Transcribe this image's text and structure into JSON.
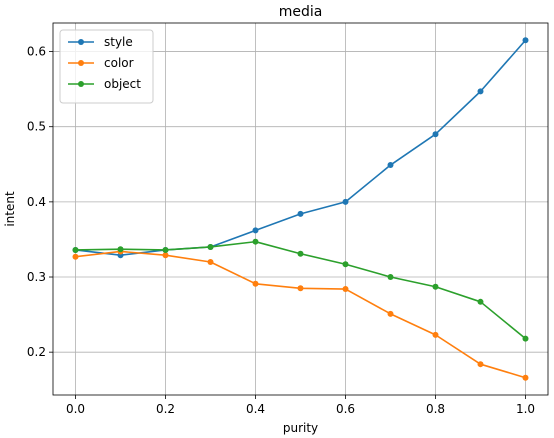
{
  "chart_data": {
    "type": "line",
    "title": "media",
    "xlabel": "purity",
    "ylabel": "intent",
    "x": [
      0.0,
      0.1,
      0.2,
      0.3,
      0.4,
      0.5,
      0.6,
      0.7,
      0.8,
      0.9,
      1.0
    ],
    "xlim": [
      -0.05,
      1.05
    ],
    "ylim": [
      0.143,
      0.638
    ],
    "xticks": [
      0.0,
      0.2,
      0.4,
      0.6,
      0.8,
      1.0
    ],
    "xtick_labels": [
      "0.0",
      "0.2",
      "0.4",
      "0.6",
      "0.8",
      "1.0"
    ],
    "yticks": [
      0.2,
      0.3,
      0.4,
      0.5,
      0.6
    ],
    "ytick_labels": [
      "0.2",
      "0.3",
      "0.4",
      "0.5",
      "0.6"
    ],
    "grid": true,
    "legend_position": "top-left",
    "series": [
      {
        "name": "style",
        "color": "#1f77b4",
        "values": [
          0.336,
          0.329,
          0.336,
          0.34,
          0.362,
          0.384,
          0.4,
          0.449,
          0.49,
          0.547,
          0.615
        ]
      },
      {
        "name": "color",
        "color": "#ff7f0e",
        "values": [
          0.327,
          0.334,
          0.329,
          0.32,
          0.291,
          0.285,
          0.284,
          0.251,
          0.223,
          0.184,
          0.166
        ]
      },
      {
        "name": "object",
        "color": "#2ca02c",
        "values": [
          0.336,
          0.337,
          0.336,
          0.34,
          0.347,
          0.331,
          0.317,
          0.3,
          0.287,
          0.267,
          0.218
        ]
      }
    ]
  }
}
